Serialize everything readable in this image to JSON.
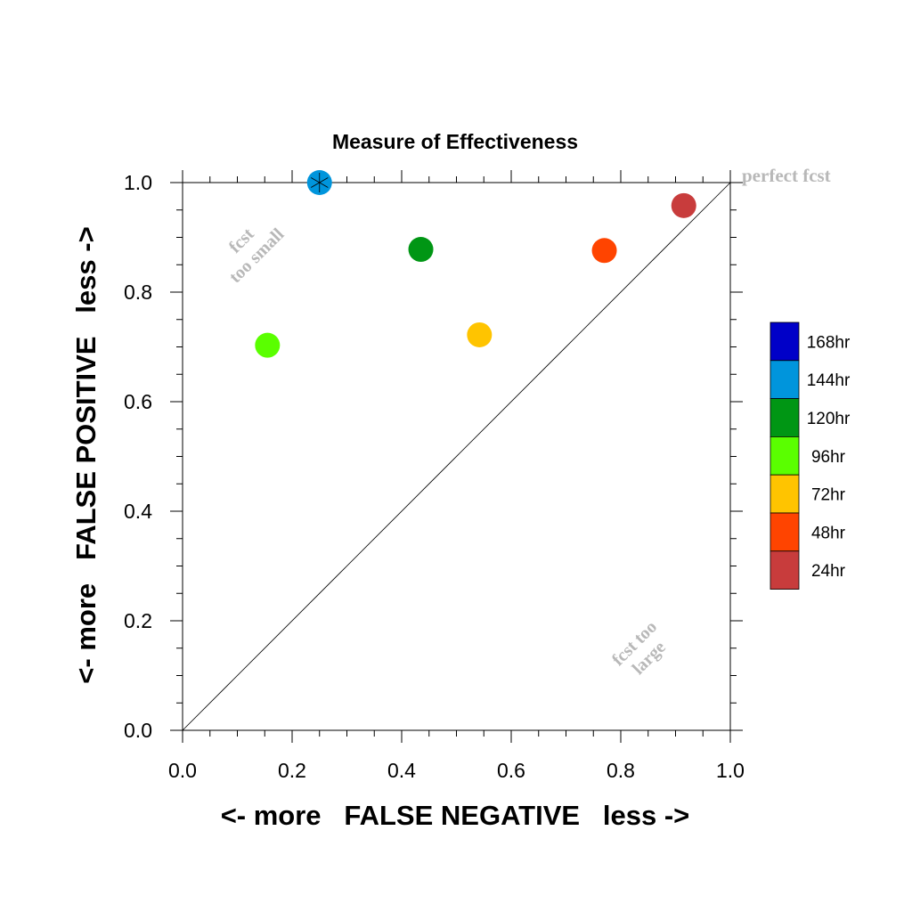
{
  "chart_data": {
    "type": "scatter",
    "title": "Measure of Effectiveness",
    "xlabel": "<- more   FALSE NEGATIVE   less ->",
    "ylabel": "<- more   FALSE POSITIVE   less ->",
    "xlim": [
      0.0,
      1.0
    ],
    "ylim": [
      0.0,
      1.0
    ],
    "xticks": [
      "0.0",
      "0.2",
      "0.4",
      "0.6",
      "0.8",
      "1.0"
    ],
    "yticks": [
      "0.0",
      "0.2",
      "0.4",
      "0.6",
      "0.8",
      "1.0"
    ],
    "grid": false,
    "diagonal_reference_line": true,
    "annotations": {
      "perfect": "perfect fcst",
      "small_line1": "fcst",
      "small_line2": "too small",
      "large_line1": "fcst too",
      "large_line2": "large"
    },
    "legend_position": "right",
    "legend": [
      {
        "label": "168hr",
        "color": "#0000c8"
      },
      {
        "label": "144hr",
        "color": "#0095dc"
      },
      {
        "label": "120hr",
        "color": "#009614"
      },
      {
        "label": "96hr",
        "color": "#5aff00"
      },
      {
        "label": "72hr",
        "color": "#ffc400"
      },
      {
        "label": "48hr",
        "color": "#ff4400"
      },
      {
        "label": "24hr",
        "color": "#c83c3c"
      }
    ],
    "points": [
      {
        "series": "144hr",
        "x": 0.25,
        "y": 1.0,
        "color": "#0095dc"
      },
      {
        "series": "120hr",
        "x": 0.435,
        "y": 0.878,
        "color": "#009614"
      },
      {
        "series": "96hr",
        "x": 0.155,
        "y": 0.703,
        "color": "#5aff00"
      },
      {
        "series": "72hr",
        "x": 0.542,
        "y": 0.722,
        "color": "#ffc400"
      },
      {
        "series": "48hr",
        "x": 0.77,
        "y": 0.876,
        "color": "#ff4400"
      },
      {
        "series": "24hr",
        "x": 0.915,
        "y": 0.958,
        "color": "#c83c3c"
      }
    ]
  }
}
